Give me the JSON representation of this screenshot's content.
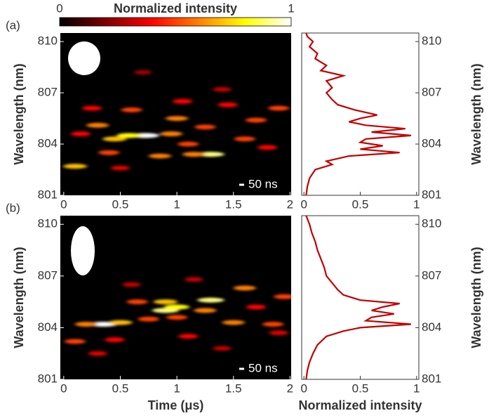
{
  "colorbar": {
    "label": "Normalized intensity",
    "lim": [
      0,
      1
    ],
    "ticks": [
      0,
      1
    ]
  },
  "chart_data": [
    {
      "type": "heatmap",
      "panel": "(a)",
      "ylabel": "Wavelength (nm)",
      "annotation": "50 ns",
      "xlim": [
        -0.03,
        2.01
      ],
      "xticks": [
        0,
        0.5,
        1,
        1.5,
        2
      ],
      "ylim": [
        801,
        810.5
      ],
      "yticks": [
        801,
        804,
        807,
        810
      ],
      "x": [
        0.72,
        0.58,
        0.45,
        0.95,
        1.3,
        1.15,
        0.85,
        0.4,
        0.1,
        0.3,
        0.6,
        1.0,
        1.25,
        1.6,
        1.7,
        1.9,
        1.45,
        0.25,
        1.1,
        1.8,
        0.15,
        1.4,
        0.7,
        0.5,
        1.05
      ],
      "y": [
        804.5,
        804.5,
        804.3,
        804.6,
        803.4,
        803.4,
        803.3,
        803.5,
        802.7,
        805.1,
        806,
        805.5,
        805.0,
        804.3,
        805.4,
        806.1,
        806.3,
        806.1,
        804.0,
        803.8,
        804.6,
        807.2,
        808.2,
        802.6,
        806.5
      ],
      "values": [
        1,
        0.8,
        0.7,
        0.6,
        0.9,
        0.6,
        0.6,
        0.5,
        0.7,
        0.6,
        0.5,
        0.6,
        0.5,
        0.5,
        0.5,
        0.5,
        0.4,
        0.4,
        0.5,
        0.4,
        0.4,
        0.3,
        0.25,
        0.35,
        0.4
      ]
    },
    {
      "type": "line",
      "color": "#c00000",
      "ylabel": "Wavelength (nm)",
      "xlim": [
        -0.02,
        1.02
      ],
      "xticks": [
        0,
        0.5,
        1
      ],
      "ylim": [
        801,
        810.5
      ],
      "yticks": [
        801,
        804,
        807,
        810
      ],
      "x": [
        801,
        801.5,
        802,
        802.5,
        802.8,
        803,
        803.3,
        803.5,
        803.7,
        803.9,
        804.1,
        804.3,
        804.5,
        804.7,
        804.9,
        805.1,
        805.3,
        805.5,
        805.7,
        806,
        806.3,
        806.6,
        807,
        807.3,
        807.7,
        808,
        808.3,
        808.6,
        809,
        809.3,
        809.7,
        810,
        810.3,
        810.5
      ],
      "values": [
        0.02,
        0.03,
        0.05,
        0.1,
        0.25,
        0.2,
        0.4,
        0.85,
        0.5,
        0.7,
        0.5,
        0.55,
        0.95,
        0.6,
        0.9,
        0.55,
        0.4,
        0.5,
        0.65,
        0.45,
        0.3,
        0.25,
        0.2,
        0.25,
        0.2,
        0.35,
        0.15,
        0.2,
        0.1,
        0.12,
        0.05,
        0.08,
        0.03,
        0.02
      ]
    },
    {
      "type": "heatmap",
      "panel": "(b)",
      "ylabel": "Wavelength (nm)",
      "xlabel": "Time (μs)",
      "annotation": "50 ns",
      "xlim": [
        -0.03,
        2.01
      ],
      "xticks": [
        0,
        0.5,
        1,
        1.5,
        2
      ],
      "ylim": [
        801,
        810.5
      ],
      "yticks": [
        801,
        804,
        807,
        810
      ],
      "x": [
        0.35,
        0.5,
        0.2,
        0.9,
        1.0,
        1.3,
        1.25,
        0.9,
        0.65,
        1.5,
        1.6,
        1.85,
        0.75,
        1.7,
        0.1,
        0.45,
        1.1,
        1.9,
        1.95,
        0.6,
        1.15,
        0.3,
        1.4,
        1.0
      ],
      "y": [
        804.2,
        804.3,
        804.2,
        805,
        805.2,
        805.6,
        805.0,
        805.5,
        805.5,
        804.3,
        806.3,
        804.2,
        804.5,
        805.2,
        803.2,
        803.3,
        803.5,
        803.7,
        805.8,
        806.5,
        806.8,
        802.5,
        802.8,
        804.6
      ],
      "values": [
        1,
        0.7,
        0.6,
        0.9,
        0.8,
        0.9,
        0.6,
        0.7,
        0.5,
        0.6,
        0.6,
        0.5,
        0.5,
        0.4,
        0.5,
        0.4,
        0.4,
        0.35,
        0.5,
        0.3,
        0.3,
        0.35,
        0.3,
        0.5
      ]
    },
    {
      "type": "line",
      "color": "#c00000",
      "ylabel": "Wavelength (nm)",
      "xlabel": "Normalized intensity",
      "xlim": [
        -0.02,
        1.02
      ],
      "xticks": [
        0,
        0.5,
        1
      ],
      "ylim": [
        801,
        810.5
      ],
      "yticks": [
        801,
        804,
        807,
        810
      ],
      "x": [
        801,
        801.5,
        802,
        802.5,
        803,
        803.5,
        803.8,
        804,
        804.2,
        804.4,
        804.6,
        804.8,
        805,
        805.2,
        805.4,
        805.6,
        805.9,
        806.2,
        806.6,
        807,
        807.5,
        808,
        808.5,
        809,
        809.5,
        810,
        810.5
      ],
      "values": [
        0.02,
        0.03,
        0.05,
        0.08,
        0.12,
        0.2,
        0.35,
        0.5,
        0.95,
        0.55,
        0.6,
        0.8,
        0.6,
        0.7,
        0.85,
        0.5,
        0.35,
        0.3,
        0.25,
        0.2,
        0.18,
        0.15,
        0.12,
        0.1,
        0.07,
        0.05,
        0.02
      ]
    }
  ]
}
